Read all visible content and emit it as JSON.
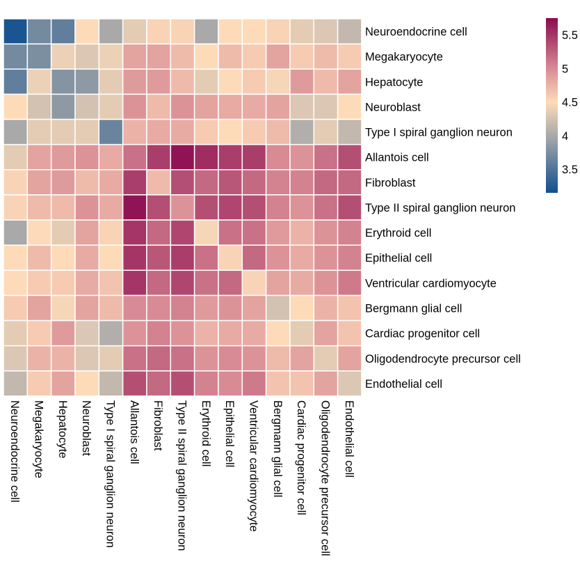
{
  "chart_data": {
    "type": "heatmap",
    "title": "",
    "xlabel": "",
    "ylabel": "",
    "row_labels": [
      "Neuroendocrine cell",
      "Megakaryocyte",
      "Hepatocyte",
      "Neuroblast",
      "Type I spiral ganglion neuron",
      "Allantois cell",
      "Fibroblast",
      "Type II spiral ganglion neuron",
      "Erythroid cell",
      "Epithelial cell",
      "Ventricular cardiomyocyte",
      "Bergmann glial cell",
      "Cardiac progenitor cell",
      "Oligodendrocyte precursor cell",
      "Endothelial cell"
    ],
    "col_labels": [
      "Neuroendocrine cell",
      "Megakaryocyte",
      "Hepatocyte",
      "Neuroblast",
      "Type I spiral ganglion neuron",
      "Allantois cell",
      "Fibroblast",
      "Type II spiral ganglion neuron",
      "Erythroid cell",
      "Epithelial cell",
      "Ventricular cardiomyocyte",
      "Bergmann glial cell",
      "Cardiac progenitor cell",
      "Oligodendrocyte precursor cell",
      "Endothelial cell"
    ],
    "values": [
      [
        3.2,
        3.7,
        3.6,
        4.5,
        4.0,
        4.35,
        4.55,
        4.55,
        4.0,
        4.5,
        4.5,
        4.55,
        4.35,
        4.3,
        4.15
      ],
      [
        3.7,
        3.75,
        4.4,
        4.3,
        4.4,
        4.85,
        4.85,
        4.7,
        4.5,
        4.7,
        4.6,
        4.85,
        4.6,
        4.7,
        4.6
      ],
      [
        3.6,
        4.4,
        3.8,
        3.85,
        4.35,
        4.9,
        4.9,
        4.7,
        4.35,
        4.5,
        4.6,
        4.45,
        4.9,
        4.7,
        4.85
      ],
      [
        4.5,
        4.25,
        3.85,
        4.25,
        4.35,
        4.95,
        4.7,
        4.95,
        4.85,
        4.8,
        4.8,
        4.85,
        4.3,
        4.3,
        4.5
      ],
      [
        4.0,
        4.35,
        4.35,
        4.35,
        3.65,
        4.75,
        4.8,
        4.8,
        4.6,
        4.5,
        4.6,
        4.7,
        4.05,
        4.35,
        4.15
      ],
      [
        4.35,
        4.85,
        4.9,
        4.95,
        4.8,
        5.15,
        5.45,
        5.7,
        5.55,
        5.45,
        5.45,
        5.0,
        4.95,
        5.15,
        5.35
      ],
      [
        4.55,
        4.85,
        4.9,
        4.7,
        4.8,
        5.45,
        4.7,
        5.35,
        5.2,
        5.3,
        5.2,
        5.05,
        5.05,
        5.2,
        5.2
      ],
      [
        4.55,
        4.7,
        4.7,
        4.95,
        4.8,
        5.7,
        5.35,
        4.95,
        5.35,
        5.4,
        5.35,
        5.05,
        4.95,
        5.15,
        5.35
      ],
      [
        4.0,
        4.5,
        4.35,
        4.85,
        4.55,
        5.5,
        5.2,
        5.4,
        4.45,
        5.15,
        5.15,
        4.9,
        4.75,
        4.95,
        5.05
      ],
      [
        4.5,
        4.7,
        4.5,
        4.8,
        4.5,
        5.5,
        5.3,
        5.45,
        5.15,
        4.55,
        5.2,
        4.95,
        4.8,
        4.95,
        5.05
      ],
      [
        4.5,
        4.6,
        4.6,
        4.8,
        4.65,
        5.5,
        5.2,
        5.4,
        5.15,
        5.2,
        4.55,
        4.85,
        4.8,
        4.95,
        5.1
      ],
      [
        4.6,
        4.85,
        4.45,
        4.85,
        4.7,
        5.0,
        5.0,
        5.05,
        4.9,
        4.95,
        4.85,
        4.25,
        4.5,
        4.75,
        4.65
      ],
      [
        4.35,
        4.6,
        4.9,
        4.3,
        4.05,
        4.95,
        5.05,
        4.95,
        4.75,
        4.8,
        4.8,
        4.5,
        4.35,
        4.85,
        4.65
      ],
      [
        4.3,
        4.75,
        4.75,
        4.3,
        4.35,
        5.15,
        5.2,
        5.15,
        4.95,
        5.0,
        4.95,
        4.7,
        4.85,
        4.35,
        4.85
      ],
      [
        4.15,
        4.6,
        4.85,
        4.5,
        4.15,
        5.35,
        5.2,
        5.35,
        5.05,
        5.0,
        5.1,
        4.65,
        4.65,
        4.85,
        4.3
      ]
    ],
    "colorbar": {
      "range": [
        3.15,
        5.75
      ],
      "ticks": [
        3.5,
        4,
        4.5,
        5,
        5.5
      ],
      "tick_labels": [
        "3.5",
        "4",
        "4.5",
        "5",
        "5.5"
      ],
      "colors": {
        "low": "#10508e",
        "mid_low": "#a9a9a9",
        "mid": "#fddbb9",
        "mid_high": "#d88b94",
        "high": "#8b0a50"
      }
    },
    "legend_position": "right",
    "grid": false
  }
}
